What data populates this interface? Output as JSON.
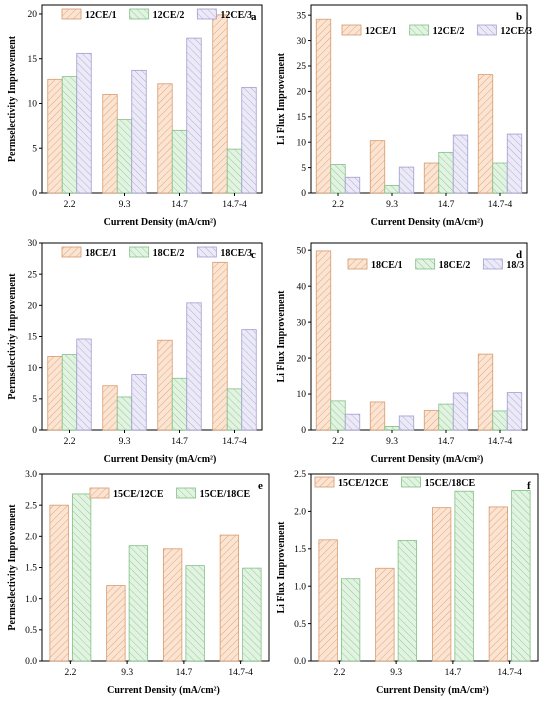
{
  "colors": {
    "series1": "#f2c9a6",
    "series2": "#bfe3c0",
    "series3": "#c9c8e6"
  },
  "chart_data": [
    {
      "type": "bar",
      "letter": "a",
      "categories": [
        "2.2",
        "9.3",
        "14.7",
        "14.7-4"
      ],
      "series": [
        {
          "name": "12CE/1",
          "values": [
            12.7,
            11.0,
            12.2,
            19.9
          ]
        },
        {
          "name": "12CE/2",
          "values": [
            13.0,
            8.2,
            7.0,
            4.9
          ]
        },
        {
          "name": "12CE/3",
          "values": [
            15.6,
            13.7,
            17.3,
            11.8
          ]
        }
      ],
      "ylabel": "Permselectivity Improvement",
      "xlabel": "Current Density (mA/cm²)",
      "ylim": [
        0,
        21
      ],
      "yticks": [
        0,
        5,
        10,
        15,
        20
      ],
      "yticklabels": [
        "0",
        "5",
        "10",
        "15",
        "20"
      ],
      "legend": "top-left"
    },
    {
      "type": "bar",
      "letter": "b",
      "categories": [
        "2.2",
        "9.3",
        "14.7",
        "14.7-4"
      ],
      "series": [
        {
          "name": "12CE/1",
          "values": [
            34.2,
            10.3,
            5.9,
            23.3
          ]
        },
        {
          "name": "12CE/2",
          "values": [
            5.6,
            1.5,
            8.0,
            5.9
          ]
        },
        {
          "name": "12CE/3",
          "values": [
            3.1,
            5.1,
            11.4,
            11.6
          ]
        }
      ],
      "ylabel": "Li Flux Improvement",
      "xlabel": "Current Density (mA/cm²)",
      "ylim": [
        0,
        37
      ],
      "yticks": [
        0,
        5,
        10,
        15,
        20,
        25,
        30,
        35
      ],
      "yticklabels": [
        "0",
        "5",
        "10",
        "15",
        "20",
        "25",
        "30",
        "35"
      ],
      "legend": "top-right"
    },
    {
      "type": "bar",
      "letter": "c",
      "categories": [
        "2.2",
        "9.3",
        "14.7",
        "14.7-4"
      ],
      "series": [
        {
          "name": "18CE/1",
          "values": [
            11.8,
            7.1,
            14.4,
            26.9
          ]
        },
        {
          "name": "18CE/2",
          "values": [
            12.1,
            5.3,
            8.3,
            6.6
          ]
        },
        {
          "name": "18CE/3",
          "values": [
            14.6,
            8.9,
            20.4,
            16.1
          ]
        }
      ],
      "ylabel": "Permselectivity Improvement",
      "xlabel": "Current Density (mA/cm²)",
      "ylim": [
        0,
        30
      ],
      "yticks": [
        0,
        5,
        10,
        15,
        20,
        25,
        30
      ],
      "yticklabels": [
        "0",
        "5",
        "10",
        "15",
        "20",
        "25",
        "30"
      ],
      "legend": "top-left"
    },
    {
      "type": "bar",
      "letter": "d",
      "categories": [
        "2.2",
        "9.3",
        "14.7",
        "14.7-4"
      ],
      "series": [
        {
          "name": "18CE/1",
          "values": [
            49.8,
            7.8,
            5.4,
            21.1
          ]
        },
        {
          "name": "18CE/2",
          "values": [
            8.1,
            1.0,
            7.2,
            5.3
          ]
        },
        {
          "name": "18/3",
          "values": [
            4.4,
            3.9,
            10.3,
            10.4
          ]
        }
      ],
      "ylabel": "Li Flux Improvement",
      "xlabel": "Current Density (mA/cm²)",
      "ylim": [
        0,
        52
      ],
      "yticks": [
        0,
        10,
        20,
        30,
        40,
        50
      ],
      "yticklabels": [
        "0",
        "10",
        "20",
        "30",
        "40",
        "50"
      ],
      "legend": "top-right"
    },
    {
      "type": "bar",
      "letter": "e",
      "categories": [
        "2.2",
        "9.3",
        "14.7",
        "14.7-4"
      ],
      "series": [
        {
          "name": "15CE/12CE",
          "values": [
            2.5,
            1.21,
            1.8,
            2.02
          ]
        },
        {
          "name": "15CE/18CE",
          "values": [
            2.68,
            1.85,
            1.53,
            1.49
          ]
        }
      ],
      "ylabel": "Permselectivity Improvement",
      "xlabel": "Current Density (mA/cm²)",
      "ylim": [
        0,
        3.0
      ],
      "yticks": [
        0,
        0.5,
        1.0,
        1.5,
        2.0,
        2.5,
        3.0
      ],
      "yticklabels": [
        "0.0",
        "0.5",
        "1.0",
        "1.5",
        "2.0",
        "2.5",
        "3.0"
      ],
      "legend": "top-right"
    },
    {
      "type": "bar",
      "letter": "f",
      "categories": [
        "2.2",
        "9.3",
        "14.7",
        "14.7-4"
      ],
      "series": [
        {
          "name": "15CE/12CE",
          "values": [
            1.62,
            1.24,
            2.05,
            2.06
          ]
        },
        {
          "name": "15CE/18CE",
          "values": [
            1.1,
            1.61,
            2.27,
            2.28
          ]
        }
      ],
      "ylabel": "Li Flux Improvement",
      "xlabel": "Current Density (mA/cm²)",
      "ylim": [
        0,
        2.5
      ],
      "yticks": [
        0,
        0.5,
        1.0,
        1.5,
        2.0,
        2.5
      ],
      "yticklabels": [
        "0.0",
        "0.5",
        "1.0",
        "1.5",
        "2.0",
        "2.5"
      ],
      "legend": "top-left"
    }
  ]
}
